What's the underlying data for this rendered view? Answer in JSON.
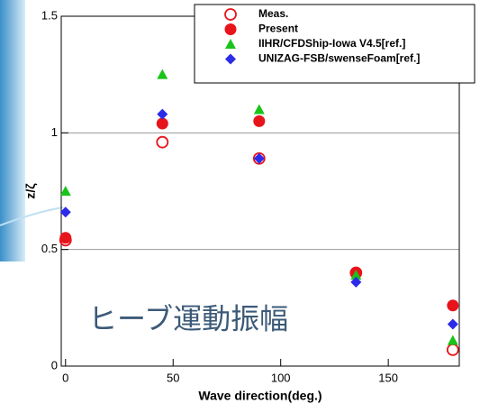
{
  "chart_data": {
    "type": "scatter",
    "x_label": "Wave direction(deg.)",
    "y_label": "z/ζ",
    "annotation": "ヒーブ運動振幅",
    "xlim": [
      -2,
      183
    ],
    "ylim": [
      0,
      1.5
    ],
    "xticks": [
      0,
      50,
      100,
      150
    ],
    "yticks": [
      0,
      0.5,
      1,
      {
        "value": 1.5,
        "label": "1.5"
      }
    ],
    "grid": true,
    "legend": "upper right",
    "series": [
      {
        "name": "Meas.",
        "color": "#e8141b",
        "marker": "open-circle",
        "x": [
          0,
          45,
          90,
          135,
          180
        ],
        "values": [
          0.54,
          0.96,
          0.89,
          0.4,
          0.07
        ]
      },
      {
        "name": "Present",
        "color": "#e8141b",
        "marker": "circle",
        "x": [
          0,
          45,
          90,
          135,
          180
        ],
        "values": [
          0.55,
          1.04,
          1.05,
          0.4,
          0.26
        ]
      },
      {
        "name": "IIHR/CFDShip-Iowa V4.5[ref.]",
        "color": "#19c419",
        "marker": "triangle",
        "x": [
          0,
          45,
          90,
          135,
          180
        ],
        "values": [
          0.75,
          1.25,
          1.1,
          0.39,
          0.11
        ]
      },
      {
        "name": "UNIZAG-FSB/swenseFoam[ref.]",
        "color": "#2b2be8",
        "marker": "diamond",
        "x": [
          0,
          45,
          90,
          135,
          180
        ],
        "values": [
          0.66,
          1.08,
          0.89,
          0.36,
          0.18
        ]
      }
    ]
  }
}
